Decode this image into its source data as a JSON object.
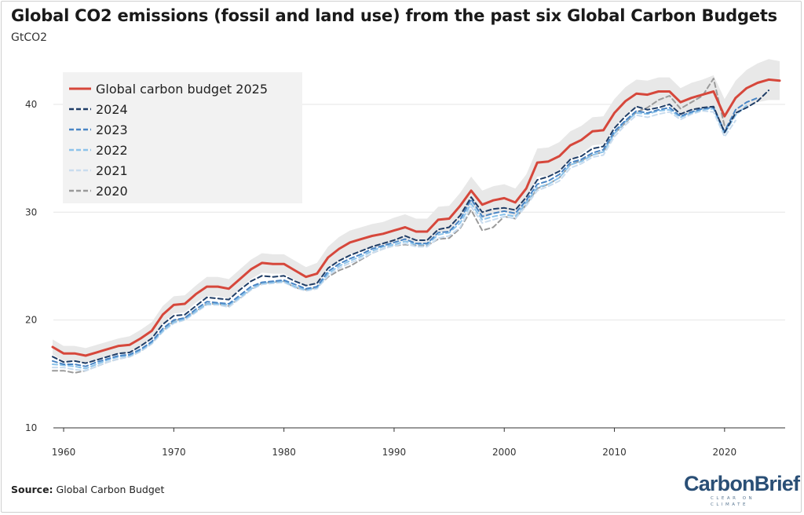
{
  "header": {
    "title": "Global CO2 emissions (fossil and land use) from the past six Global Carbon Budgets",
    "subtitle": "GtCO2"
  },
  "footer": {
    "source_label": "Source:",
    "source_text": "Global Carbon Budget",
    "brand_name": "CarbonBrief",
    "brand_tagline": "CLEAR ON CLIMATE"
  },
  "chart_data": {
    "type": "line",
    "title": "Global CO2 emissions (fossil and land use) from the past six Global Carbon Budgets",
    "ylabel": "GtCO2",
    "xlim": [
      1958.5,
      2025.5
    ],
    "ylim": [
      10,
      44
    ],
    "xticks": [
      1960,
      1970,
      1980,
      1990,
      2000,
      2010,
      2020
    ],
    "yticks": [
      10,
      20,
      30,
      40
    ],
    "grid": "horizontal",
    "legend_position": "top-left",
    "colors": {
      "gcb2025": "#d6473b",
      "gcb2024": "#1f3d66",
      "gcb2023": "#4a86c5",
      "gcb2022": "#8cc3ea",
      "gcb2021": "#c9dcee",
      "gcb2020": "#9a9a9a",
      "uncertainty": "#e8e8e8"
    },
    "series": [
      {
        "name": "Global carbon budget 2025",
        "key": "gcb2025",
        "dashed": false,
        "x_start": 1959,
        "values": [
          17.5,
          16.9,
          16.9,
          16.7,
          17.0,
          17.3,
          17.6,
          17.7,
          18.3,
          19.0,
          20.5,
          21.4,
          21.5,
          22.4,
          23.1,
          23.1,
          22.9,
          23.8,
          24.7,
          25.3,
          25.2,
          25.2,
          24.6,
          24.0,
          24.3,
          25.8,
          26.6,
          27.2,
          27.5,
          27.8,
          28.0,
          28.3,
          28.6,
          28.2,
          28.2,
          29.3,
          29.4,
          30.6,
          32.0,
          30.7,
          31.1,
          31.3,
          30.9,
          32.2,
          34.6,
          34.7,
          35.2,
          36.2,
          36.7,
          37.5,
          37.6,
          39.2,
          40.3,
          41.0,
          40.9,
          41.2,
          41.2,
          40.2,
          40.6,
          40.9,
          41.2,
          38.9,
          40.6,
          41.5,
          42.0,
          42.3,
          42.2
        ]
      },
      {
        "name": "2024",
        "key": "gcb2024",
        "dashed": true,
        "x_start": 1959,
        "values": [
          16.6,
          16.1,
          16.2,
          16.0,
          16.3,
          16.6,
          16.9,
          17.0,
          17.6,
          18.3,
          19.6,
          20.4,
          20.5,
          21.3,
          22.1,
          22.0,
          21.9,
          22.8,
          23.6,
          24.1,
          24.0,
          24.1,
          23.6,
          23.2,
          23.4,
          24.8,
          25.5,
          26.0,
          26.4,
          26.8,
          27.1,
          27.4,
          27.8,
          27.4,
          27.4,
          28.4,
          28.6,
          29.7,
          31.4,
          30.0,
          30.3,
          30.4,
          30.2,
          31.4,
          33.0,
          33.3,
          33.8,
          34.9,
          35.2,
          35.9,
          36.1,
          37.8,
          38.9,
          39.8,
          39.5,
          39.7,
          40.0,
          39.1,
          39.5,
          39.7,
          39.8,
          37.4,
          39.2,
          39.7,
          40.3,
          41.3
        ]
      },
      {
        "name": "2023",
        "key": "gcb2023",
        "dashed": true,
        "x_start": 1959,
        "values": [
          16.2,
          15.9,
          15.9,
          15.7,
          16.1,
          16.4,
          16.7,
          16.8,
          17.3,
          18.0,
          19.2,
          20.0,
          20.2,
          21.0,
          21.7,
          21.6,
          21.5,
          22.3,
          23.1,
          23.5,
          23.6,
          23.7,
          23.3,
          22.9,
          23.1,
          24.5,
          25.2,
          25.7,
          26.1,
          26.6,
          26.9,
          27.2,
          27.5,
          27.1,
          27.1,
          28.1,
          28.2,
          29.3,
          31.2,
          29.6,
          29.9,
          30.1,
          29.9,
          31.1,
          32.6,
          32.9,
          33.5,
          34.6,
          34.9,
          35.5,
          35.8,
          37.5,
          38.5,
          39.4,
          39.2,
          39.5,
          39.7,
          38.9,
          39.3,
          39.6,
          39.7,
          37.5,
          39.5,
          40.2,
          40.6
        ]
      },
      {
        "name": "2022",
        "key": "gcb2022",
        "dashed": true,
        "x_start": 1959,
        "values": [
          15.9,
          15.8,
          15.7,
          15.5,
          15.9,
          16.3,
          16.6,
          16.7,
          17.2,
          17.9,
          19.0,
          19.8,
          20.1,
          20.8,
          21.5,
          21.5,
          21.4,
          22.1,
          22.9,
          23.4,
          23.5,
          23.6,
          23.1,
          22.8,
          23.0,
          24.3,
          25.0,
          25.5,
          25.9,
          26.4,
          26.8,
          27.0,
          27.3,
          27.0,
          27.0,
          27.9,
          28.1,
          29.0,
          30.8,
          29.3,
          29.6,
          29.8,
          29.6,
          30.9,
          32.3,
          32.6,
          33.2,
          34.4,
          34.7,
          35.3,
          35.6,
          37.3,
          38.4,
          39.2,
          39.1,
          39.4,
          39.5,
          38.8,
          39.2,
          39.5,
          39.6,
          37.3,
          39.0,
          39.9
        ]
      },
      {
        "name": "2021",
        "key": "gcb2021",
        "dashed": true,
        "x_start": 1959,
        "values": [
          15.6,
          15.6,
          15.4,
          15.3,
          15.7,
          16.1,
          16.4,
          16.6,
          17.1,
          17.8,
          18.9,
          19.7,
          20.0,
          20.7,
          21.4,
          21.4,
          21.2,
          22.0,
          22.8,
          23.3,
          23.4,
          23.5,
          23.0,
          22.7,
          22.9,
          24.1,
          24.8,
          25.3,
          25.7,
          26.2,
          26.6,
          26.9,
          27.1,
          26.8,
          26.8,
          27.6,
          27.8,
          28.6,
          30.5,
          29.0,
          29.3,
          29.6,
          29.4,
          30.6,
          32.0,
          32.4,
          32.9,
          34.1,
          34.5,
          35.1,
          35.3,
          37.0,
          38.1,
          39.0,
          38.8,
          39.1,
          39.3,
          38.6,
          39.1,
          39.4,
          39.3,
          37.0,
          38.5
        ]
      },
      {
        "name": "2020",
        "key": "gcb2020",
        "dashed": true,
        "x_start": 1959,
        "values": [
          15.3,
          15.3,
          15.1,
          15.3,
          15.7,
          16.1,
          16.4,
          16.6,
          17.1,
          17.8,
          19.0,
          19.9,
          20.2,
          20.8,
          21.5,
          21.5,
          21.3,
          22.0,
          22.8,
          23.4,
          23.5,
          23.6,
          23.0,
          22.8,
          23.0,
          24.0,
          24.6,
          25.0,
          25.6,
          26.2,
          26.6,
          26.9,
          27.0,
          26.9,
          26.9,
          27.5,
          27.6,
          28.5,
          30.2,
          28.3,
          28.6,
          29.6,
          29.4,
          30.7,
          32.2,
          32.6,
          33.2,
          34.4,
          34.8,
          35.3,
          35.6,
          37.3,
          38.3,
          39.3,
          39.7,
          40.4,
          40.8,
          39.6,
          40.2,
          40.8,
          42.4,
          38.0
        ]
      }
    ],
    "uncertainty_band": {
      "series_key": "gcb2025",
      "x_start": 1959,
      "upper": [
        18.2,
        17.6,
        17.6,
        17.4,
        17.7,
        18.0,
        18.3,
        18.5,
        19.1,
        19.8,
        21.3,
        22.2,
        22.3,
        23.2,
        24.0,
        24.0,
        23.8,
        24.7,
        25.6,
        26.2,
        26.1,
        26.1,
        25.5,
        24.9,
        25.3,
        26.8,
        27.7,
        28.3,
        28.6,
        28.9,
        29.1,
        29.5,
        29.8,
        29.4,
        29.4,
        30.5,
        30.6,
        31.8,
        33.3,
        32.0,
        32.4,
        32.6,
        32.2,
        33.5,
        35.9,
        36.0,
        36.5,
        37.5,
        38.0,
        38.8,
        38.9,
        40.5,
        41.6,
        42.3,
        42.2,
        42.5,
        42.5,
        41.5,
        42.0,
        42.3,
        42.7,
        40.5,
        42.2,
        43.2,
        43.8,
        44.2,
        44.0
      ],
      "lower": [
        16.8,
        16.2,
        16.2,
        16.0,
        16.3,
        16.6,
        16.9,
        16.9,
        17.5,
        18.2,
        19.7,
        20.6,
        20.7,
        21.6,
        22.2,
        22.2,
        22.0,
        22.9,
        23.8,
        24.4,
        24.3,
        24.3,
        23.7,
        23.1,
        23.3,
        24.8,
        25.5,
        26.1,
        26.4,
        26.7,
        26.9,
        27.1,
        27.4,
        27.0,
        27.0,
        28.1,
        28.2,
        29.4,
        30.7,
        29.4,
        29.8,
        30.0,
        29.6,
        30.9,
        33.3,
        33.4,
        33.9,
        34.9,
        35.4,
        36.2,
        36.3,
        37.9,
        39.0,
        39.7,
        39.6,
        39.9,
        39.9,
        38.9,
        39.2,
        39.5,
        39.7,
        37.3,
        39.0,
        39.8,
        40.2,
        40.4,
        40.4
      ]
    }
  }
}
